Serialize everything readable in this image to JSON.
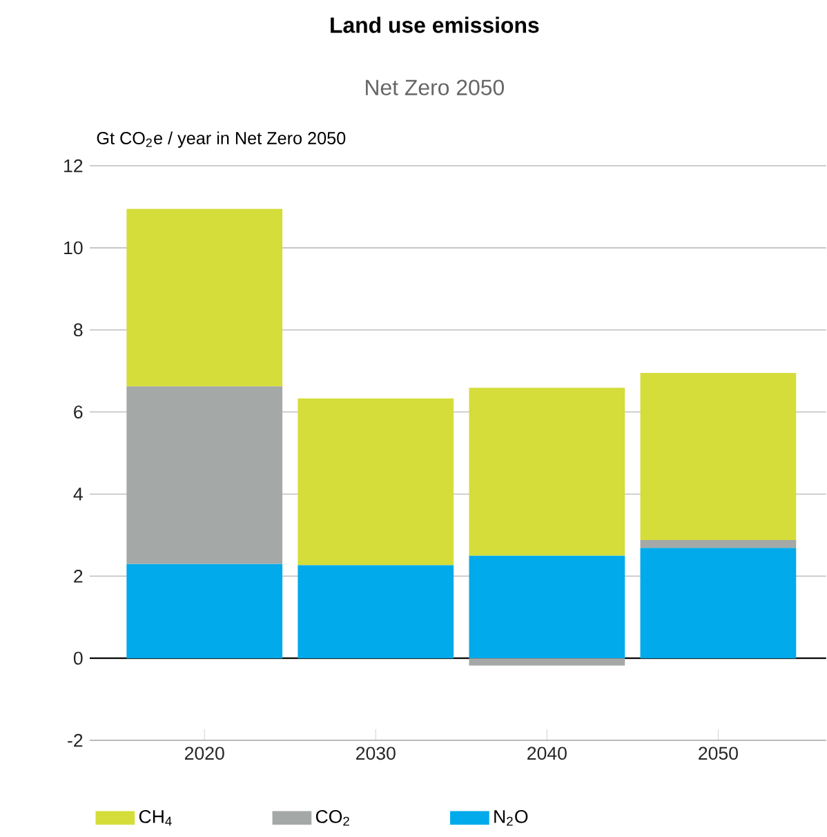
{
  "chart_data": {
    "type": "bar",
    "stacked": true,
    "title": "Land use emissions",
    "subtitle": "Net Zero 2050",
    "ylabel": "Gt CO$_{2}$e / year in Net Zero 2050",
    "categories": [
      "2020",
      "2030",
      "2040",
      "2050"
    ],
    "series": [
      {
        "name": "N$_{2}$O",
        "color": "#00aaeb",
        "values": [
          2.3,
          2.27,
          2.5,
          2.69
        ]
      },
      {
        "name": "CO$_{2}$",
        "color": "#a4a8a6",
        "values": [
          4.33,
          0,
          -0.18,
          0.19
        ]
      },
      {
        "name": "CH$_{4}$",
        "color": "#d4dd3a",
        "values": [
          4.32,
          4.06,
          4.09,
          4.07
        ]
      }
    ],
    "ylim": [
      -2,
      12
    ],
    "yticks": [
      -2,
      0,
      2,
      4,
      6,
      8,
      10,
      12
    ],
    "grid": "y",
    "legend": "bottom"
  }
}
